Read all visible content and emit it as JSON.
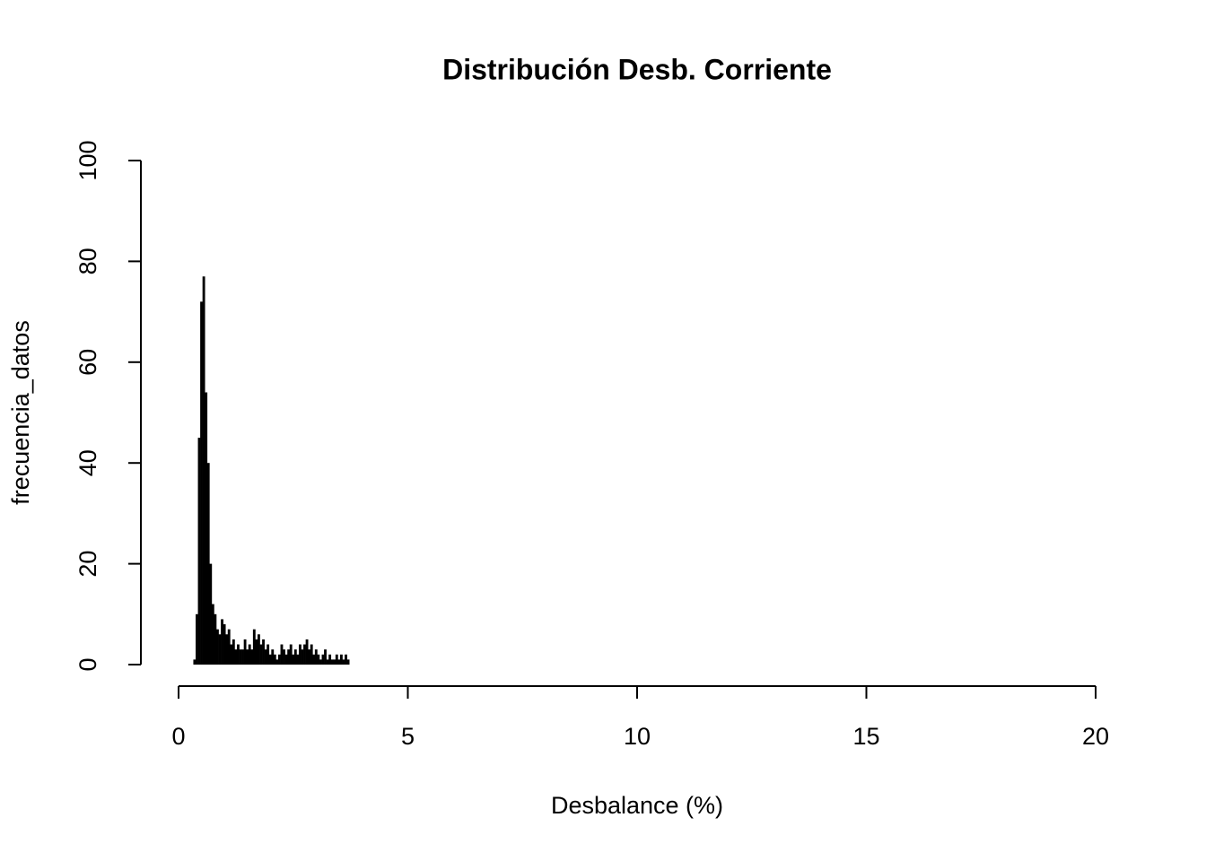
{
  "chart_data": {
    "type": "bar",
    "title": "Distribución Desb. Corriente",
    "x_label": "Desbalance (%)",
    "y_label": "frecuencia_datos",
    "x": [
      0.35,
      0.4,
      0.45,
      0.5,
      0.55,
      0.6,
      0.65,
      0.7,
      0.75,
      0.8,
      0.85,
      0.9,
      0.95,
      1.0,
      1.05,
      1.1,
      1.15,
      1.2,
      1.25,
      1.3,
      1.35,
      1.4,
      1.45,
      1.5,
      1.55,
      1.6,
      1.65,
      1.7,
      1.75,
      1.8,
      1.85,
      1.9,
      1.95,
      2.0,
      2.05,
      2.1,
      2.15,
      2.2,
      2.25,
      2.3,
      2.35,
      2.4,
      2.45,
      2.5,
      2.55,
      2.6,
      2.65,
      2.7,
      2.75,
      2.8,
      2.85,
      2.9,
      2.95,
      3.0,
      3.05,
      3.1,
      3.15,
      3.2,
      3.25,
      3.3,
      3.35,
      3.4,
      3.45,
      3.5,
      3.55,
      3.6,
      3.65,
      3.7
    ],
    "values": [
      1,
      10,
      45,
      72,
      77,
      54,
      40,
      20,
      12,
      10,
      7,
      6,
      9,
      8,
      6,
      7,
      4,
      5,
      3,
      4,
      3,
      3,
      5,
      3,
      4,
      3,
      7,
      5,
      6,
      4,
      5,
      3,
      4,
      2,
      3,
      2,
      1,
      2,
      4,
      3,
      2,
      3,
      4,
      2,
      3,
      2,
      4,
      3,
      4,
      5,
      3,
      4,
      2,
      3,
      2,
      1,
      2,
      3,
      1,
      2,
      1,
      1,
      2,
      1,
      2,
      1,
      2,
      1
    ],
    "color": "#000000",
    "xlim": [
      0,
      20
    ],
    "xticks": [
      0,
      5,
      10,
      15,
      20
    ],
    "ylim": [
      0,
      100
    ],
    "yticks": [
      0,
      20,
      40,
      60,
      80,
      100
    ]
  }
}
